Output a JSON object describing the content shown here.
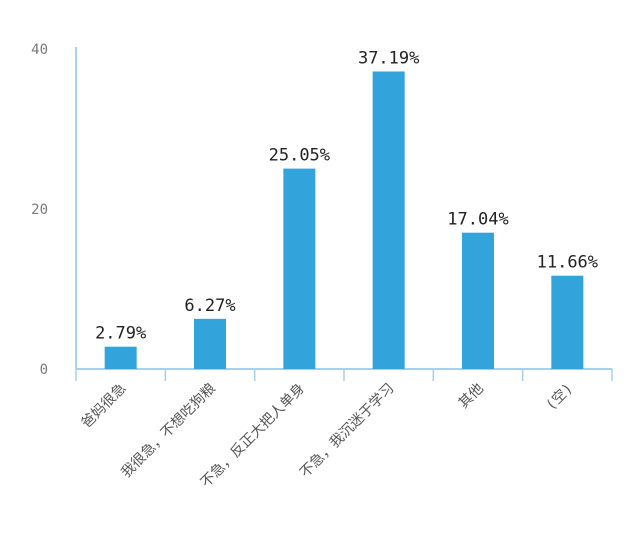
{
  "chart_data": {
    "type": "bar",
    "categories": [
      "爸妈很急",
      "我很急，不想吃狗粮",
      "不急，反正大把人单身",
      "不急，我沉迷于学习",
      "其他",
      "(空)"
    ],
    "values": [
      2.79,
      6.27,
      25.05,
      37.19,
      17.04,
      11.66
    ],
    "data_labels": [
      "2.79%",
      "6.27%",
      "25.05%",
      "37.19%",
      "17.04%",
      "11.66%"
    ],
    "y_ticks": [
      "0",
      "20",
      "40"
    ],
    "ylim": [
      0,
      40
    ],
    "grid": false,
    "legend": "none",
    "colors": {
      "bar": "#33a3dc",
      "axis": "#a9d0ea"
    }
  }
}
